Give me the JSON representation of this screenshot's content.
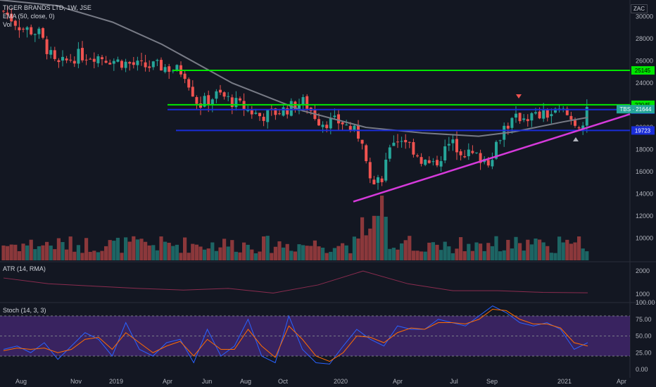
{
  "header": {
    "title": "TIGER BRANDS LTD, 1W, JSE",
    "ema": "EMA (50, close, 0)",
    "vol": "Vol",
    "currency": "ZAC"
  },
  "indicators": {
    "atr_label": "ATR (14, RMA)",
    "stoch_label": "Stoch (14, 3, 3)"
  },
  "colors": {
    "background": "#131722",
    "up": "#26a69a",
    "down": "#ef5350",
    "ema": "#787b86",
    "support_resistance_green": "#00e600",
    "support_resistance_blue": "#1a2dd8",
    "trendline": "#d63adb",
    "stoch_band": "#4a2a7a",
    "stoch_k": "#2962ff",
    "stoch_d": "#ff6d00",
    "atr_line": "#8b2c4f"
  },
  "chart_data": [
    {
      "type": "candlestick",
      "title": "TIGER BRANDS LTD, 1W, JSE",
      "x_ticks": [
        "Aug",
        "Nov",
        "2019",
        "Apr",
        "Jun",
        "Aug",
        "Oct",
        "2020",
        "Apr",
        "Jul",
        "Sep",
        "2021",
        "Apr"
      ],
      "y_ticks": [
        30000,
        28000,
        26000,
        24000,
        22000,
        20000,
        18000,
        16000,
        14000,
        12000,
        10000
      ],
      "ylim": [
        8000,
        31500
      ],
      "grid": false,
      "horizontal_levels": [
        {
          "label": "25145",
          "value": 25145,
          "color": "#00e600"
        },
        {
          "label": "22045",
          "value": 22045,
          "color": "#00e600"
        },
        {
          "label": "21607",
          "value": 21607,
          "color": "#1a2dd8"
        },
        {
          "label": "19723",
          "value": 19723,
          "color": "#1a2dd8"
        }
      ],
      "last_price": {
        "label": "TBS · 21644",
        "value": 21644
      },
      "trendline": {
        "from": {
          "x": "2020-02",
          "y": 13300
        },
        "to": {
          "x": "2021-03",
          "y": 20800
        }
      },
      "series": [
        {
          "name": "EMA (50, close, 0)",
          "values": [
            31500,
            31000,
            29500,
            27500,
            24000,
            21500,
            20000,
            19500,
            19200,
            19600,
            20500,
            20900
          ]
        }
      ]
    },
    {
      "type": "line",
      "title": "ATR (14, RMA)",
      "y_ticks": [
        2000,
        1000
      ],
      "ylim": [
        700,
        2400
      ],
      "series": [
        {
          "name": "ATR",
          "values": [
            1700,
            1450,
            1350,
            1250,
            1180,
            1250,
            1050,
            1400,
            2000,
            1450,
            1150,
            1150,
            1080,
            1060
          ]
        }
      ]
    },
    {
      "type": "line",
      "title": "Stoch (14, 3, 3)",
      "y_ticks": [
        "100.00",
        "75.00",
        "50.00",
        "25.00",
        "0.00"
      ],
      "ylim": [
        0,
        100
      ],
      "bands": [
        20,
        80
      ],
      "series": [
        {
          "name": "K",
          "values": [
            30,
            35,
            25,
            40,
            15,
            35,
            55,
            45,
            20,
            70,
            30,
            20,
            40,
            45,
            10,
            60,
            20,
            35,
            75,
            20,
            10,
            80,
            30,
            10,
            8,
            35,
            60,
            45,
            35,
            65,
            60,
            60,
            75,
            70,
            65,
            80,
            95,
            85,
            70,
            65,
            70,
            60,
            30,
            40
          ]
        },
        {
          "name": "D",
          "values": [
            28,
            32,
            30,
            32,
            25,
            30,
            45,
            48,
            30,
            55,
            40,
            25,
            35,
            42,
            20,
            45,
            30,
            30,
            60,
            35,
            18,
            65,
            45,
            20,
            12,
            25,
            50,
            48,
            40,
            55,
            62,
            60,
            70,
            70,
            68,
            75,
            90,
            88,
            75,
            68,
            68,
            62,
            40,
            35
          ]
        }
      ]
    }
  ]
}
